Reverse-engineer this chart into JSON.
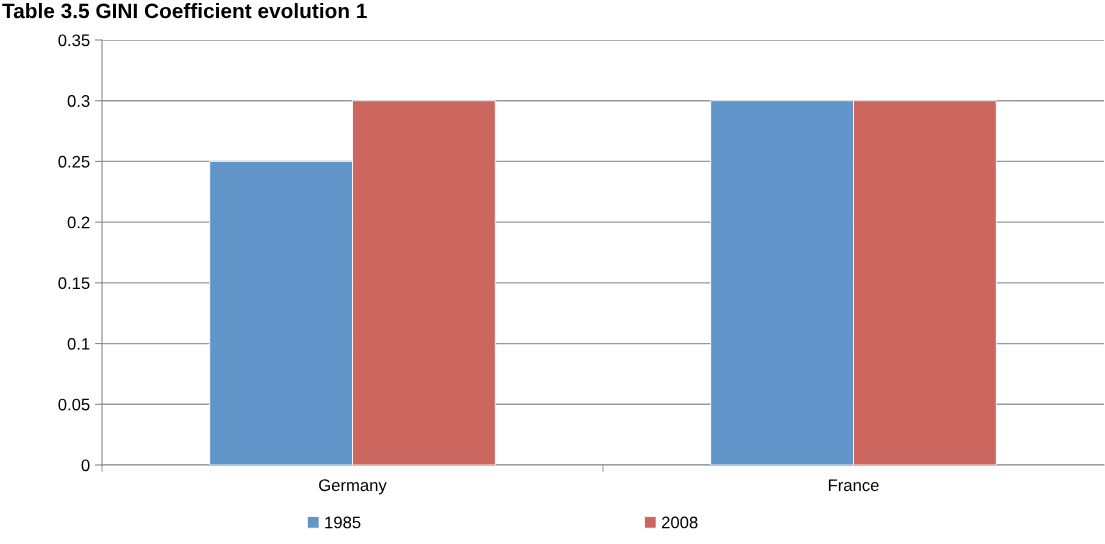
{
  "chart_data": {
    "type": "bar",
    "title": "Table 3.5 GINI Coefficient evolution 1",
    "categories": [
      "Germany",
      "France"
    ],
    "series": [
      {
        "name": "1985",
        "color": "#6194c9",
        "values": [
          0.25,
          0.3
        ]
      },
      {
        "name": "2008",
        "color": "#cc6760",
        "values": [
          0.3,
          0.3
        ]
      }
    ],
    "ylim": [
      0,
      0.35
    ],
    "yticks": [
      0,
      0.05,
      0.1,
      0.15,
      0.2,
      0.25,
      0.3,
      0.35
    ],
    "grid": "y",
    "legend": "bottom"
  }
}
